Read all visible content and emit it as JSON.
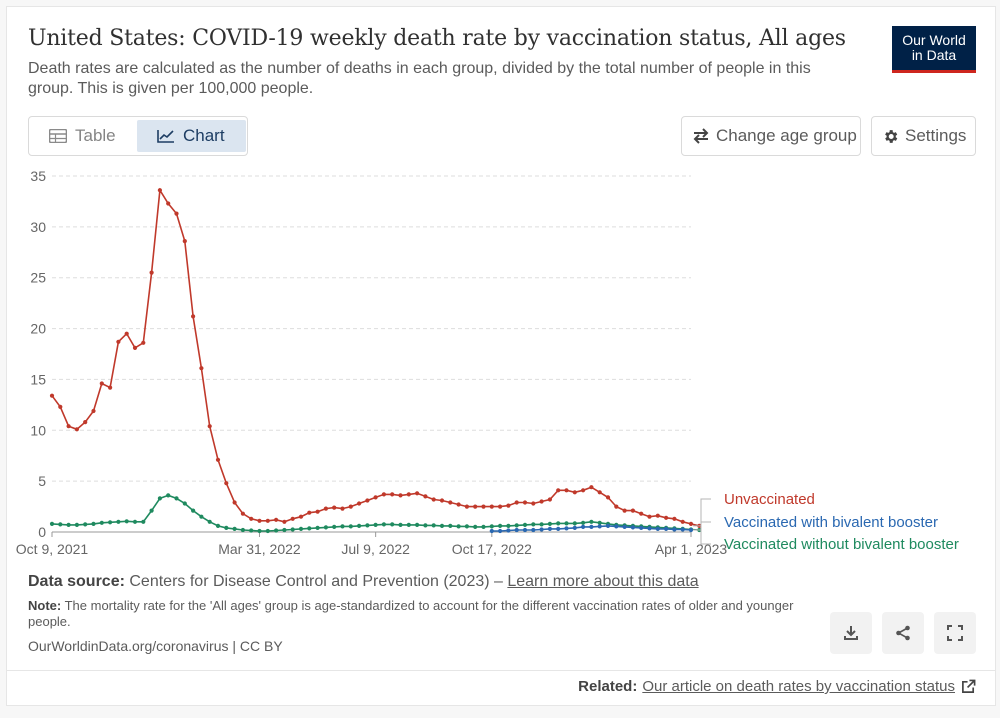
{
  "header": {
    "title": "United States: COVID-19 weekly death rate by vaccination status, All ages",
    "subtitle": "Death rates are calculated as the number of deaths in each group, divided by the total number of people in this group. This is given per 100,000 people.",
    "logo_line1": "Our World",
    "logo_line2": "in Data"
  },
  "controls": {
    "tab_table": "Table",
    "tab_chart": "Chart",
    "change_age_group": "Change age group",
    "settings": "Settings"
  },
  "chart_data": {
    "type": "line",
    "title": "United States: COVID-19 weekly death rate by vaccination status, All ages",
    "ylabel": "",
    "xlabel": "",
    "ylim": [
      0,
      35
    ],
    "yticks": [
      0,
      5,
      10,
      15,
      20,
      25,
      30,
      35
    ],
    "xtick_labels": [
      {
        "label": "Oct 9, 2021",
        "week": 0
      },
      {
        "label": "Mar 31, 2022",
        "week": 25
      },
      {
        "label": "Jul 9, 2022",
        "week": 39
      },
      {
        "label": "Oct 17, 2022",
        "week": 53
      },
      {
        "label": "Apr 1, 2023",
        "week": 77
      }
    ],
    "weeks_total": 78,
    "series": [
      {
        "name": "Unvaccinated",
        "color": "#c0392b",
        "start_week": 0,
        "values": [
          13.4,
          12.3,
          10.4,
          10.1,
          10.8,
          11.9,
          14.6,
          14.2,
          18.7,
          19.5,
          18.1,
          18.6,
          25.5,
          33.6,
          32.3,
          31.3,
          28.6,
          21.2,
          16.1,
          10.4,
          7.1,
          4.8,
          2.9,
          1.8,
          1.3,
          1.1,
          1.1,
          1.2,
          1.0,
          1.3,
          1.5,
          1.9,
          2.0,
          2.3,
          2.4,
          2.3,
          2.5,
          2.8,
          3.1,
          3.4,
          3.7,
          3.7,
          3.6,
          3.7,
          3.8,
          3.5,
          3.2,
          3.1,
          2.9,
          2.7,
          2.5,
          2.5,
          2.5,
          2.5,
          2.5,
          2.6,
          2.9,
          2.9,
          2.8,
          3.0,
          3.2,
          4.1,
          4.1,
          3.9,
          4.1,
          4.4,
          3.9,
          3.4,
          2.5,
          2.1,
          2.1,
          1.8,
          1.5,
          1.6,
          1.4,
          1.3,
          1.0,
          0.8,
          0.6
        ]
      },
      {
        "name": "Vaccinated with bivalent booster",
        "color": "#2a68b1",
        "start_week": 53,
        "values": [
          0.1,
          0.1,
          0.15,
          0.2,
          0.2,
          0.2,
          0.25,
          0.3,
          0.3,
          0.35,
          0.4,
          0.5,
          0.5,
          0.55,
          0.6,
          0.55,
          0.5,
          0.45,
          0.4,
          0.35,
          0.3,
          0.3,
          0.25,
          0.25,
          0.2
        ]
      },
      {
        "name": "Vaccinated without bivalent booster",
        "color": "#1f8a5f",
        "start_week": 0,
        "values": [
          0.8,
          0.75,
          0.7,
          0.7,
          0.75,
          0.8,
          0.9,
          0.95,
          1.0,
          1.05,
          1.0,
          1.0,
          2.1,
          3.3,
          3.6,
          3.3,
          2.8,
          2.1,
          1.5,
          1.0,
          0.6,
          0.4,
          0.3,
          0.2,
          0.15,
          0.1,
          0.1,
          0.15,
          0.2,
          0.25,
          0.3,
          0.35,
          0.4,
          0.45,
          0.5,
          0.55,
          0.55,
          0.6,
          0.65,
          0.7,
          0.75,
          0.75,
          0.7,
          0.7,
          0.7,
          0.65,
          0.65,
          0.6,
          0.6,
          0.55,
          0.55,
          0.5,
          0.5,
          0.55,
          0.6,
          0.6,
          0.65,
          0.7,
          0.75,
          0.75,
          0.8,
          0.85,
          0.85,
          0.85,
          0.9,
          1.0,
          0.9,
          0.8,
          0.7,
          0.65,
          0.6,
          0.55,
          0.5,
          0.45,
          0.4,
          0.35,
          0.3,
          0.25,
          0.2
        ]
      }
    ],
    "legend_position": "right"
  },
  "footer": {
    "source_label": "Data source:",
    "source_text": "Centers for Disease Control and Prevention (2023) –",
    "source_link": "Learn more about this data",
    "note_label": "Note:",
    "note_text": "The mortality rate for the 'All ages' group is age-standardized to account for the different vaccination rates of older and younger people.",
    "credit": "OurWorldinData.org/coronavirus | CC BY",
    "related_label": "Related:",
    "related_link": "Our article on death rates by vaccination status"
  }
}
